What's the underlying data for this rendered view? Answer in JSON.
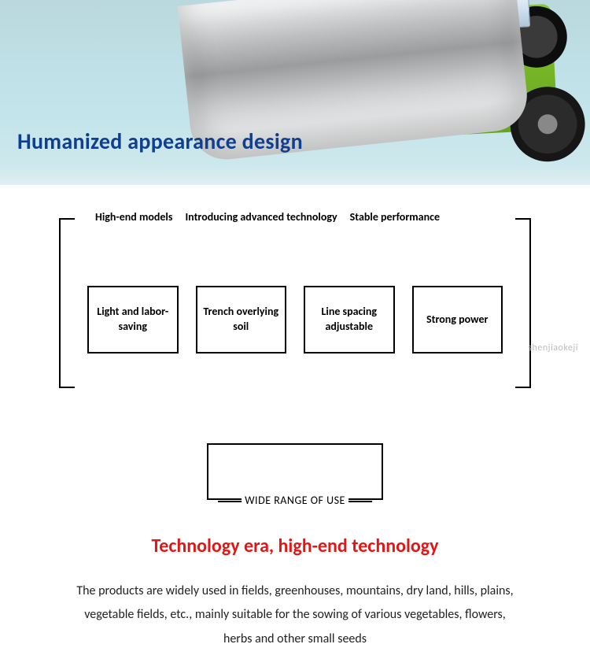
{
  "colors": {
    "banner_title": "#0f3f8f",
    "red_title": "#e11717",
    "text": "#000000",
    "bg": "#ffffff"
  },
  "banner": {
    "title": "Humanized appearance design"
  },
  "top_labels": [
    "High-end models",
    "Introducing advanced technology",
    "Stable performance"
  ],
  "feature_boxes": [
    "Light and labor-saving",
    "Trench overlying soil",
    "Line spacing adjustable",
    "Strong power"
  ],
  "watermark": "shenjiaokeji",
  "range": {
    "label": "WIDE RANGE OF USE"
  },
  "red_title": "Technology era, high-end technology",
  "description": "The products are widely used in fields, greenhouses, mountains, dry land, hills, plains, vegetable fields, etc., mainly suitable for the sowing of various vegetables, flowers, herbs and other small seeds"
}
